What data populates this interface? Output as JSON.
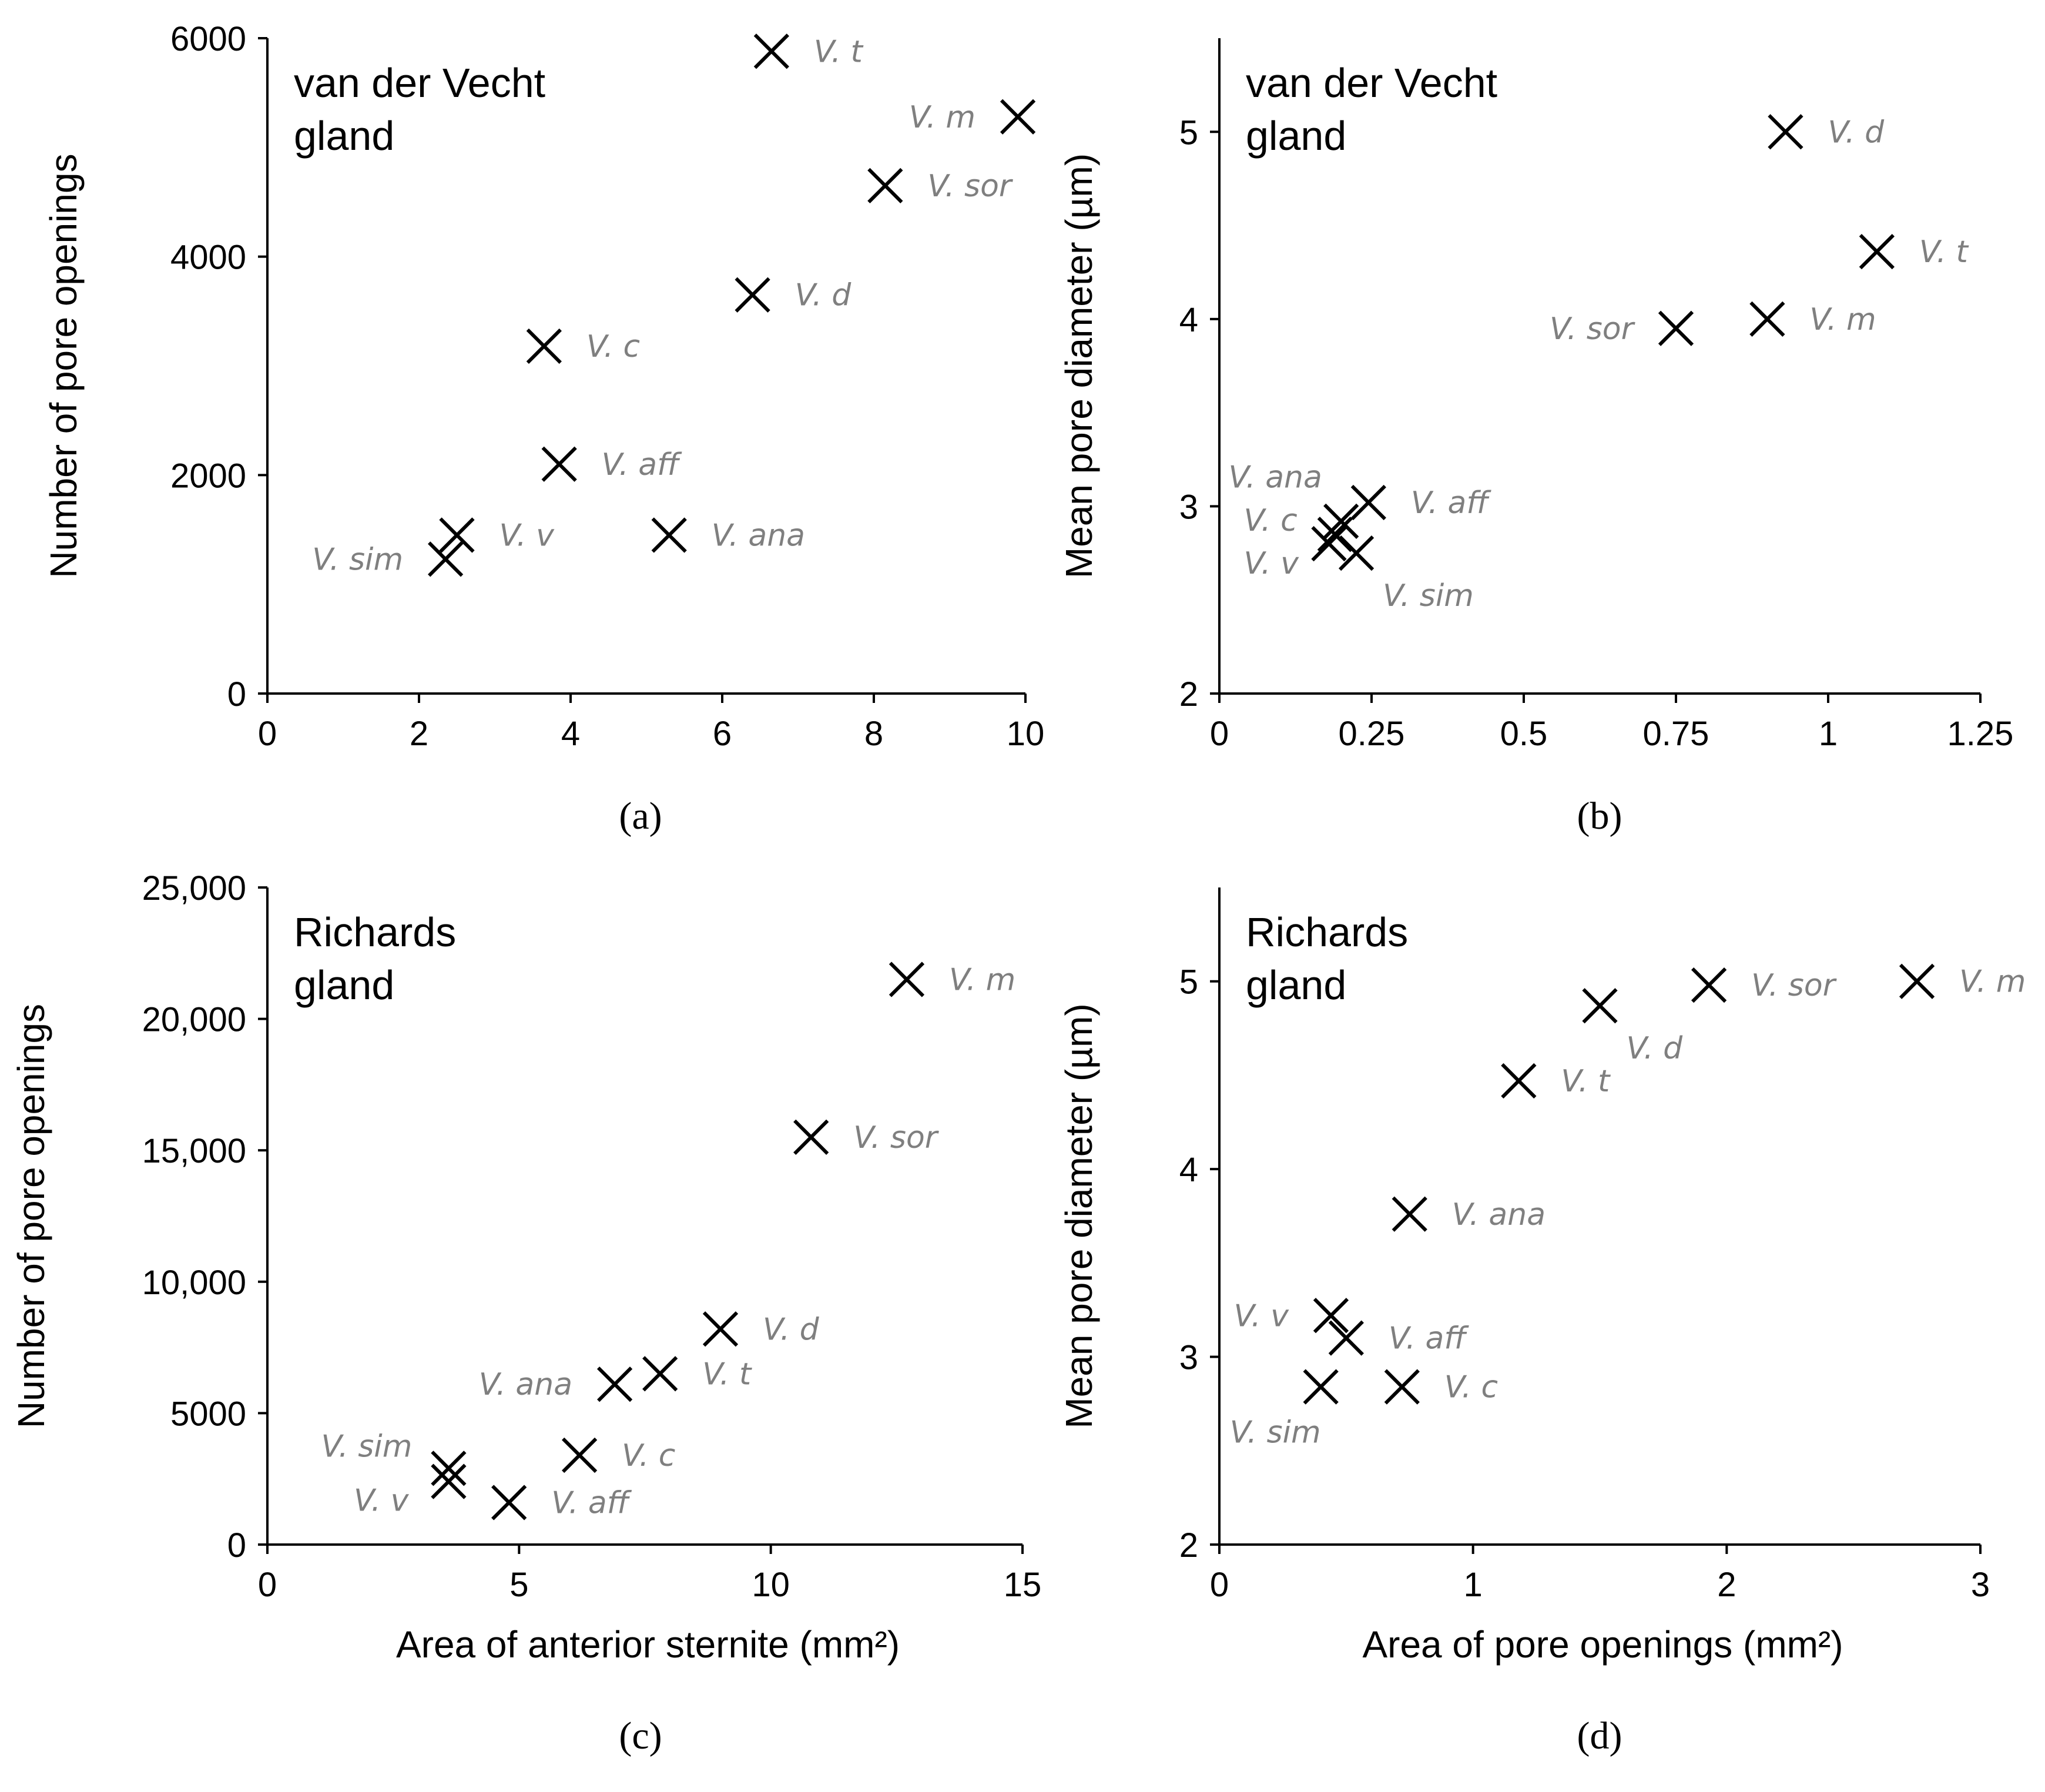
{
  "chart_data": [
    {
      "type": "scatter",
      "panel_label": "(a)",
      "annotation": [
        "van der Vecht",
        "gland"
      ],
      "xlabel": "",
      "ylabel": "Number of pore openings",
      "xlim": [
        0,
        10
      ],
      "ylim": [
        0,
        6000
      ],
      "xticks": [
        0,
        2,
        4,
        6,
        8,
        10
      ],
      "xtick_labels": [
        "0",
        "2",
        "4",
        "6",
        "8",
        "10"
      ],
      "yticks": [
        0,
        2000,
        4000,
        6000
      ],
      "ytick_labels": [
        "0",
        "2000",
        "4000",
        "6000"
      ],
      "points": [
        {
          "label": "V. t",
          "x": 6.65,
          "y": 5880,
          "pos": "right"
        },
        {
          "label": "V. m",
          "x": 9.9,
          "y": 5280,
          "pos": "left"
        },
        {
          "label": "V. sor",
          "x": 8.15,
          "y": 4650,
          "pos": "right"
        },
        {
          "label": "V. d",
          "x": 6.4,
          "y": 3650,
          "pos": "right"
        },
        {
          "label": "V. c",
          "x": 3.65,
          "y": 3180,
          "pos": "right"
        },
        {
          "label": "V. aff",
          "x": 3.85,
          "y": 2100,
          "pos": "right"
        },
        {
          "label": "V. v",
          "x": 2.5,
          "y": 1450,
          "pos": "right"
        },
        {
          "label": "V. ana",
          "x": 5.3,
          "y": 1450,
          "pos": "right"
        },
        {
          "label": "V. sim",
          "x": 2.35,
          "y": 1230,
          "pos": "left"
        }
      ]
    },
    {
      "type": "scatter",
      "panel_label": "(b)",
      "annotation": [
        "van der Vecht",
        "gland"
      ],
      "xlabel": "",
      "ylabel": "Mean pore diameter (µm)",
      "xlim": [
        0,
        1.25
      ],
      "ylim": [
        2,
        5.5
      ],
      "xticks": [
        0,
        0.25,
        0.5,
        0.75,
        1,
        1.25
      ],
      "xtick_labels": [
        "0",
        "0.25",
        "0.5",
        "0.75",
        "1",
        "1.25"
      ],
      "yticks": [
        2,
        3,
        4,
        5
      ],
      "ytick_labels": [
        "2",
        "3",
        "4",
        "5"
      ],
      "points": [
        {
          "label": "V. d",
          "x": 0.93,
          "y": 5.0,
          "pos": "right"
        },
        {
          "label": "V. t",
          "x": 1.08,
          "y": 4.36,
          "pos": "right"
        },
        {
          "label": "V. sor",
          "x": 0.75,
          "y": 3.95,
          "pos": "left"
        },
        {
          "label": "V. m",
          "x": 0.9,
          "y": 4.0,
          "pos": "right"
        },
        {
          "label": "V. aff",
          "x": 0.245,
          "y": 3.02,
          "pos": "right"
        },
        {
          "label": "V. ana",
          "x": 0.2,
          "y": 2.92,
          "pos": "none"
        },
        {
          "label": "V. c",
          "x": 0.19,
          "y": 2.85,
          "pos": "none"
        },
        {
          "label": "V. v",
          "x": 0.18,
          "y": 2.8,
          "pos": "none"
        },
        {
          "label": "V. sim",
          "x": 0.225,
          "y": 2.75,
          "pos": "below-right"
        }
      ],
      "free_labels": [
        {
          "text": "V. ana",
          "x": 0.015,
          "y": 3.1
        },
        {
          "text": "V. c",
          "x": 0.04,
          "y": 2.87
        },
        {
          "text": "V. v",
          "x": 0.04,
          "y": 2.64
        }
      ]
    },
    {
      "type": "scatter",
      "panel_label": "(c)",
      "annotation": [
        "Richards",
        "gland"
      ],
      "xlabel": "Area of anterior sternite (mm²)",
      "ylabel": "Number of pore openings",
      "xlim": [
        0,
        15
      ],
      "ylim": [
        0,
        25000
      ],
      "xticks": [
        0,
        5,
        10,
        15
      ],
      "xtick_labels": [
        "0",
        "5",
        "10",
        "15"
      ],
      "yticks": [
        0,
        5000,
        10000,
        15000,
        20000,
        25000
      ],
      "ytick_labels": [
        "0",
        "5000",
        "10,000",
        "15,000",
        "20,000",
        "25,000"
      ],
      "points": [
        {
          "label": "V. m",
          "x": 12.7,
          "y": 21500,
          "pos": "right"
        },
        {
          "label": "V. sor",
          "x": 10.8,
          "y": 15500,
          "pos": "right"
        },
        {
          "label": "V. d",
          "x": 9.0,
          "y": 8200,
          "pos": "right"
        },
        {
          "label": "V. t",
          "x": 7.8,
          "y": 6500,
          "pos": "right"
        },
        {
          "label": "V. ana",
          "x": 6.9,
          "y": 6100,
          "pos": "left"
        },
        {
          "label": "V. c",
          "x": 6.2,
          "y": 3400,
          "pos": "right"
        },
        {
          "label": "V. sim",
          "x": 3.6,
          "y": 2900,
          "pos": "upper-left"
        },
        {
          "label": "V. v",
          "x": 3.6,
          "y": 2400,
          "pos": "lower-left"
        },
        {
          "label": "V. aff",
          "x": 4.8,
          "y": 1600,
          "pos": "right"
        }
      ]
    },
    {
      "type": "scatter",
      "panel_label": "(d)",
      "annotation": [
        "Richards",
        "gland"
      ],
      "xlabel": "Area of pore openings (mm²)",
      "ylabel": "Mean pore diameter (µm)",
      "xlim": [
        0,
        3
      ],
      "ylim": [
        2,
        5.5
      ],
      "xticks": [
        0,
        1,
        2,
        3
      ],
      "xtick_labels": [
        "0",
        "1",
        "2",
        "3"
      ],
      "yticks": [
        2,
        3,
        4,
        5
      ],
      "ytick_labels": [
        "2",
        "3",
        "4",
        "5"
      ],
      "points": [
        {
          "label": "V. m",
          "x": 2.75,
          "y": 5.0,
          "pos": "right"
        },
        {
          "label": "V. sor",
          "x": 1.93,
          "y": 4.98,
          "pos": "right"
        },
        {
          "label": "V. d",
          "x": 1.5,
          "y": 4.87,
          "pos": "below-right"
        },
        {
          "label": "V. t",
          "x": 1.18,
          "y": 4.47,
          "pos": "right"
        },
        {
          "label": "V. ana",
          "x": 0.75,
          "y": 3.76,
          "pos": "right"
        },
        {
          "label": "V. v",
          "x": 0.44,
          "y": 3.22,
          "pos": "left"
        },
        {
          "label": "V. aff",
          "x": 0.5,
          "y": 3.1,
          "pos": "right"
        },
        {
          "label": "V. sim",
          "x": 0.4,
          "y": 2.84,
          "pos": "below-left"
        },
        {
          "label": "V. c",
          "x": 0.72,
          "y": 2.84,
          "pos": "right"
        }
      ]
    }
  ]
}
